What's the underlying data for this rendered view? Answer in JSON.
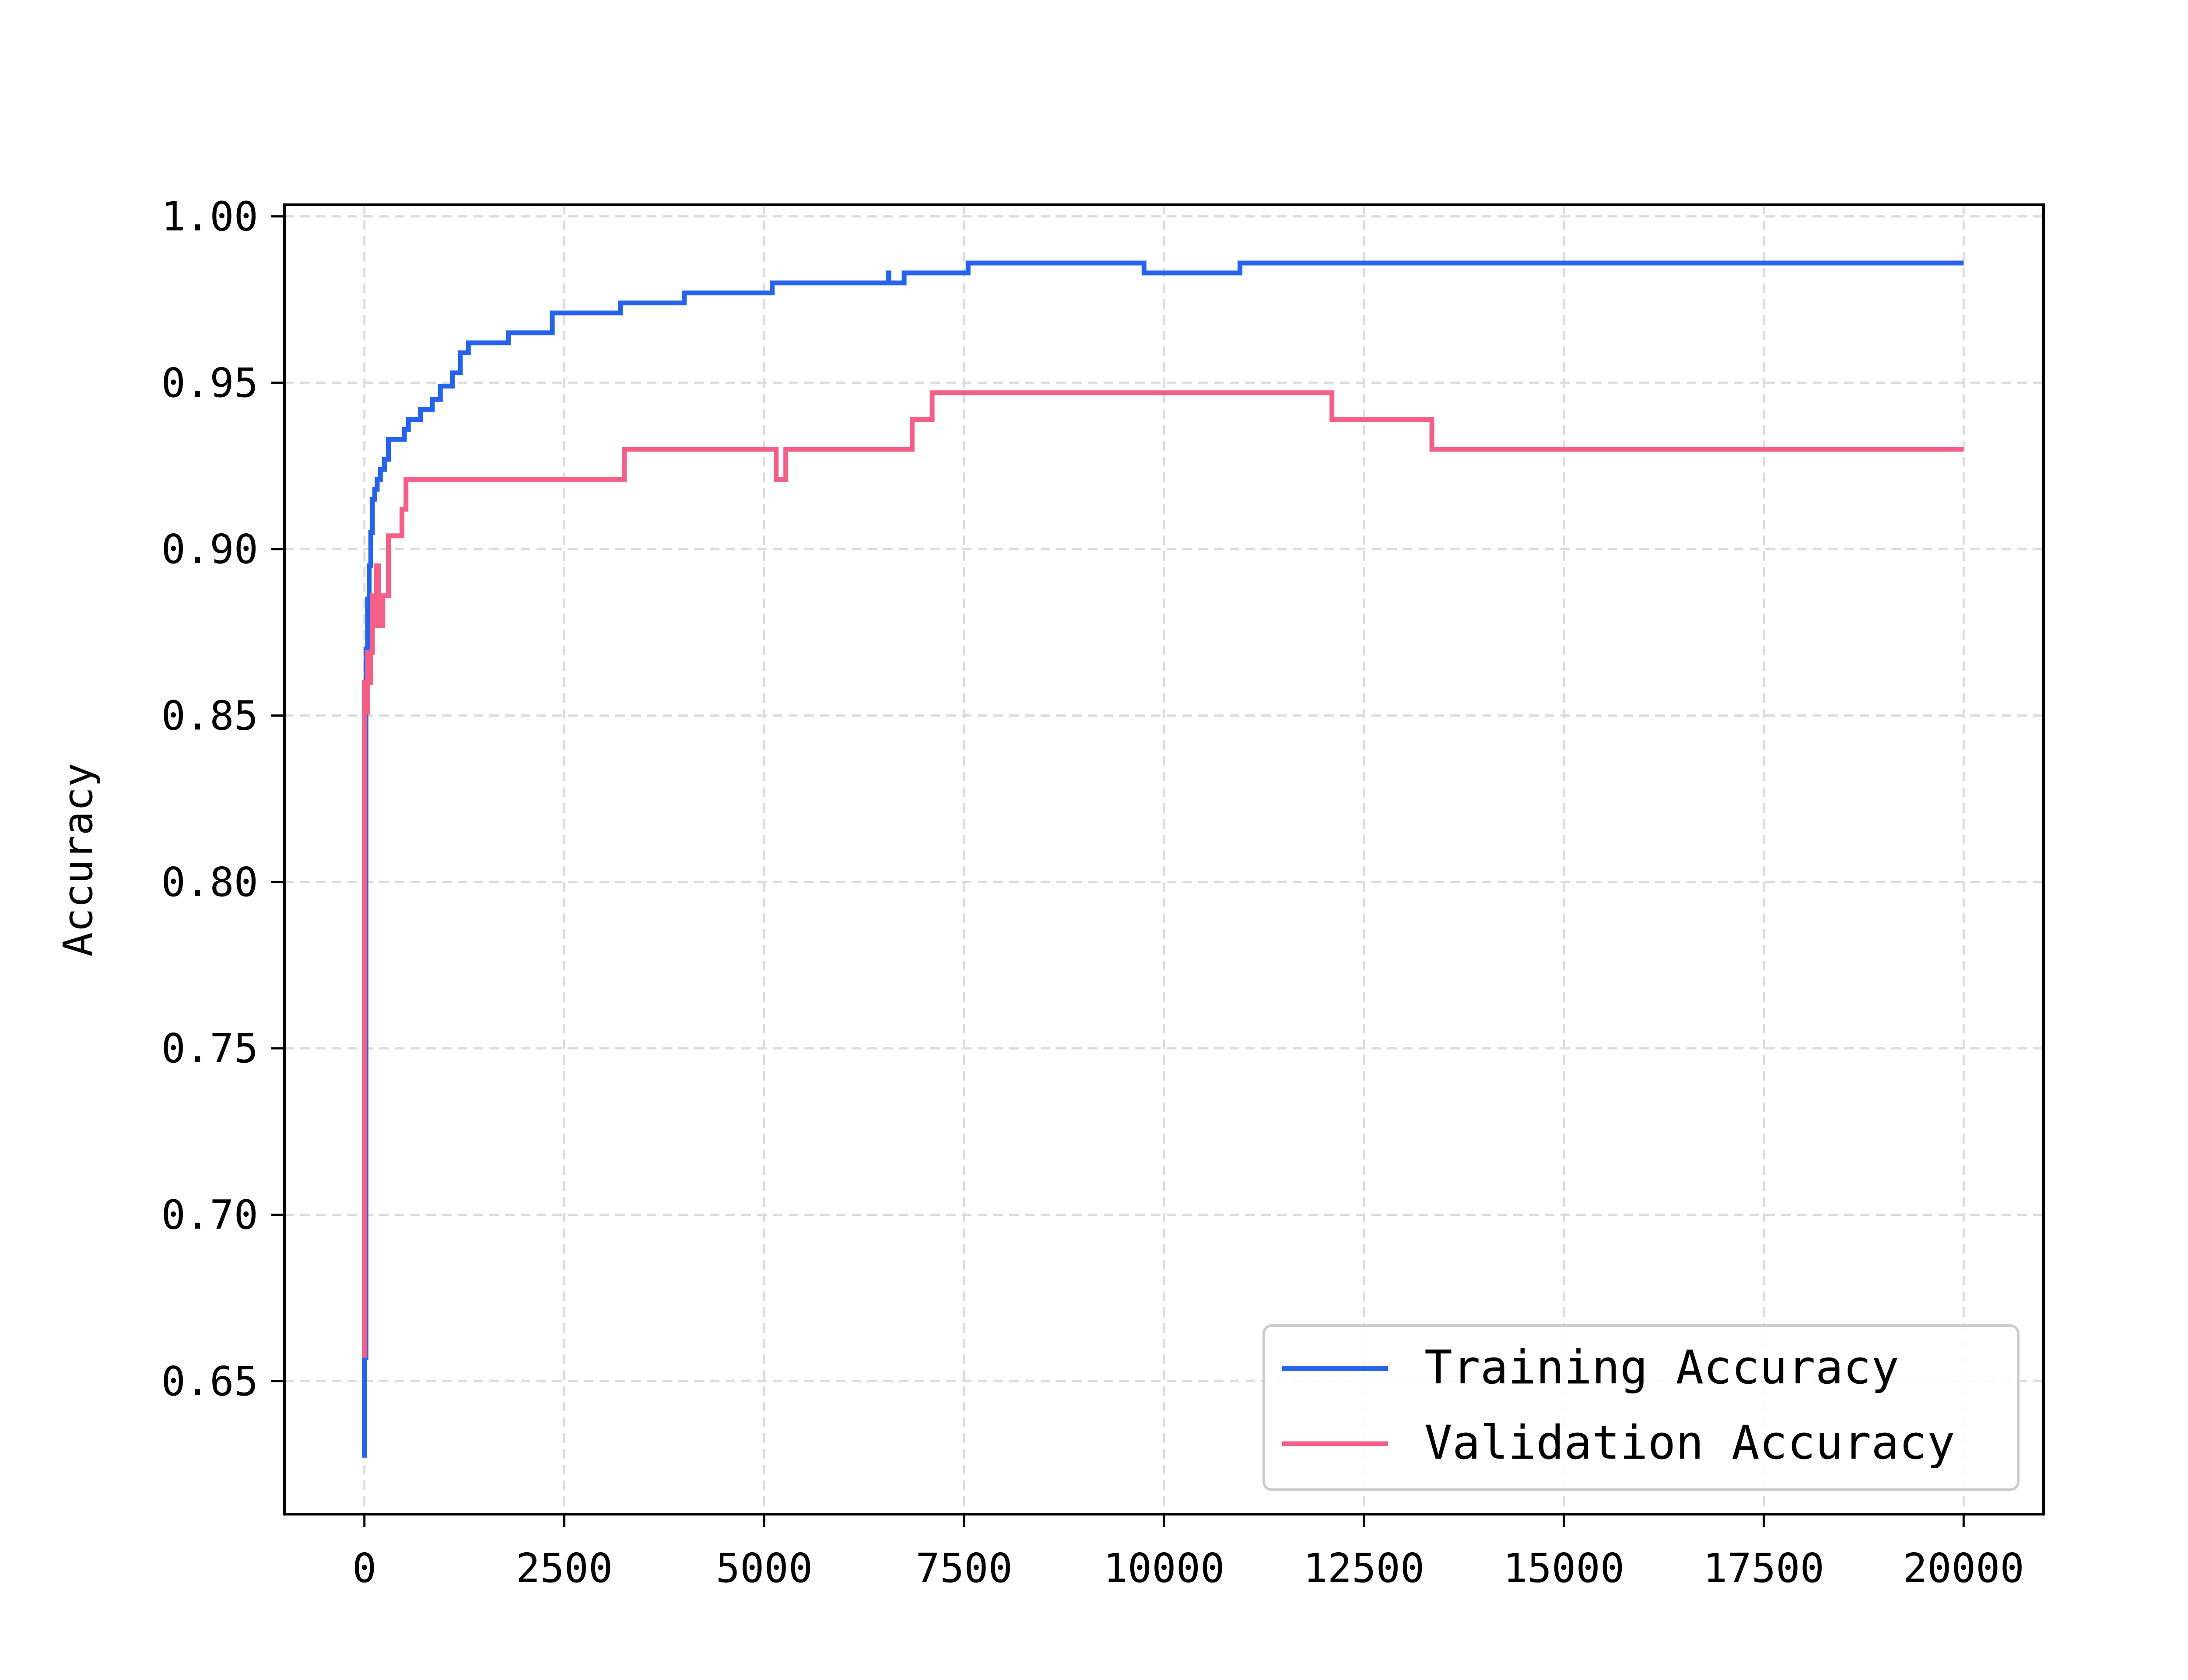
{
  "chart_data": {
    "type": "line",
    "title": "",
    "xlabel": "",
    "ylabel": "Accuracy",
    "xlim": [
      -1000,
      21000
    ],
    "ylim": [
      0.61,
      1.0035
    ],
    "grid": true,
    "legend_position": "bottom-right",
    "x_ticks": [
      0,
      2500,
      5000,
      7500,
      10000,
      12500,
      15000,
      17500,
      20000
    ],
    "x_tick_labels": [
      "0",
      "2500",
      "5000",
      "7500",
      "10000",
      "12500",
      "15000",
      "17500",
      "20000"
    ],
    "y_ticks": [
      0.65,
      0.7,
      0.75,
      0.8,
      0.85,
      0.9,
      0.95,
      1.0
    ],
    "y_tick_labels": [
      "0.65",
      "0.70",
      "0.75",
      "0.80",
      "0.85",
      "0.90",
      "0.95",
      "1.00"
    ],
    "series": [
      {
        "name": "Training Accuracy",
        "color": "#2563eb",
        "step": true,
        "x": [
          0,
          0,
          20,
          40,
          60,
          80,
          100,
          130,
          160,
          200,
          250,
          300,
          350,
          500,
          550,
          700,
          850,
          950,
          1100,
          1200,
          1300,
          1800,
          2350,
          3200,
          4000,
          5100,
          6550,
          6560,
          6600,
          6750,
          7550,
          9750,
          10950,
          20000
        ],
        "y": [
          0.627,
          0.657,
          0.87,
          0.885,
          0.895,
          0.905,
          0.915,
          0.918,
          0.921,
          0.924,
          0.927,
          0.933,
          0.933,
          0.936,
          0.939,
          0.942,
          0.945,
          0.949,
          0.953,
          0.959,
          0.962,
          0.965,
          0.971,
          0.974,
          0.977,
          0.98,
          0.983,
          0.98,
          0.98,
          0.983,
          0.986,
          0.983,
          0.986,
          0.986
        ]
      },
      {
        "name": "Validation Accuracy",
        "color": "#f45f88",
        "step": true,
        "x": [
          0,
          0,
          20,
          40,
          60,
          80,
          100,
          120,
          150,
          180,
          230,
          300,
          470,
          520,
          3250,
          5150,
          5180,
          5270,
          6850,
          7100,
          12100,
          13350,
          20000
        ],
        "y": [
          0.657,
          0.86,
          0.851,
          0.869,
          0.86,
          0.869,
          0.886,
          0.877,
          0.895,
          0.877,
          0.886,
          0.904,
          0.912,
          0.921,
          0.93,
          0.921,
          0.921,
          0.93,
          0.939,
          0.947,
          0.939,
          0.93,
          0.93
        ]
      }
    ]
  }
}
